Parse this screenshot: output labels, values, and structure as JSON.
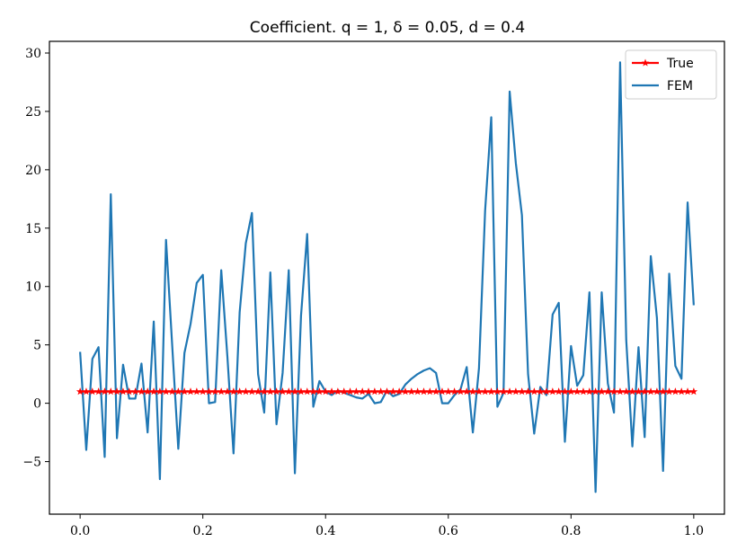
{
  "chart_data": {
    "type": "line",
    "title": "Coefficient. q = 1, δ = 0.05, d = 0.4",
    "xlim": [
      -0.05,
      1.05
    ],
    "ylim": [
      -9.5,
      31
    ],
    "x_ticks": [
      "0.0",
      "0.2",
      "0.4",
      "0.6",
      "0.8",
      "1.0"
    ],
    "y_ticks": [
      "−5",
      "0",
      "5",
      "10",
      "15",
      "20",
      "25",
      "30"
    ],
    "grid": false,
    "legend_position": "upper right",
    "colors": {
      "true": "#ff0000",
      "fem": "#1f77b4"
    },
    "series": [
      {
        "name": "True",
        "marker": "star",
        "x": [
          0,
          0.01,
          0.02,
          0.03,
          0.04,
          0.05,
          0.06,
          0.07,
          0.08,
          0.09,
          0.1,
          0.11,
          0.12,
          0.13,
          0.14,
          0.15,
          0.16,
          0.17,
          0.18,
          0.19,
          0.2,
          0.21,
          0.22,
          0.23,
          0.24,
          0.25,
          0.26,
          0.27,
          0.28,
          0.29,
          0.3,
          0.31,
          0.32,
          0.33,
          0.34,
          0.35,
          0.36,
          0.37,
          0.38,
          0.39,
          0.4,
          0.41,
          0.42,
          0.43,
          0.44,
          0.45,
          0.46,
          0.47,
          0.48,
          0.49,
          0.5,
          0.51,
          0.52,
          0.53,
          0.54,
          0.55,
          0.56,
          0.57,
          0.58,
          0.59,
          0.6,
          0.61,
          0.62,
          0.63,
          0.64,
          0.65,
          0.66,
          0.67,
          0.68,
          0.69,
          0.7,
          0.71,
          0.72,
          0.73,
          0.74,
          0.75,
          0.76,
          0.77,
          0.78,
          0.79,
          0.8,
          0.81,
          0.82,
          0.83,
          0.84,
          0.85,
          0.86,
          0.87,
          0.88,
          0.89,
          0.9,
          0.91,
          0.92,
          0.93,
          0.94,
          0.95,
          0.96,
          0.97,
          0.98,
          0.99,
          1
        ],
        "y": [
          1,
          1,
          1,
          1,
          1,
          1,
          1,
          1,
          1,
          1,
          1,
          1,
          1,
          1,
          1,
          1,
          1,
          1,
          1,
          1,
          1,
          1,
          1,
          1,
          1,
          1,
          1,
          1,
          1,
          1,
          1,
          1,
          1,
          1,
          1,
          1,
          1,
          1,
          1,
          1,
          1,
          1,
          1,
          1,
          1,
          1,
          1,
          1,
          1,
          1,
          1,
          1,
          1,
          1,
          1,
          1,
          1,
          1,
          1,
          1,
          1,
          1,
          1,
          1,
          1,
          1,
          1,
          1,
          1,
          1,
          1,
          1,
          1,
          1,
          1,
          1,
          1,
          1,
          1,
          1,
          1,
          1,
          1,
          1,
          1,
          1,
          1,
          1,
          1,
          1,
          1,
          1,
          1,
          1,
          1,
          1,
          1,
          1,
          1,
          1,
          1
        ]
      },
      {
        "name": "FEM",
        "x": [
          0,
          0.01,
          0.02,
          0.03,
          0.04,
          0.05,
          0.06,
          0.07,
          0.08,
          0.09,
          0.1,
          0.11,
          0.12,
          0.13,
          0.14,
          0.15,
          0.16,
          0.17,
          0.18,
          0.19,
          0.2,
          0.21,
          0.22,
          0.23,
          0.24,
          0.25,
          0.26,
          0.27,
          0.28,
          0.29,
          0.3,
          0.31,
          0.32,
          0.33,
          0.34,
          0.35,
          0.36,
          0.37,
          0.38,
          0.39,
          0.4,
          0.41,
          0.42,
          0.43,
          0.44,
          0.45,
          0.46,
          0.47,
          0.48,
          0.49,
          0.5,
          0.51,
          0.52,
          0.53,
          0.54,
          0.55,
          0.56,
          0.57,
          0.58,
          0.59,
          0.6,
          0.61,
          0.62,
          0.63,
          0.64,
          0.65,
          0.66,
          0.67,
          0.68,
          0.69,
          0.7,
          0.71,
          0.72,
          0.73,
          0.74,
          0.75,
          0.76,
          0.77,
          0.78,
          0.79,
          0.8,
          0.81,
          0.82,
          0.83,
          0.84,
          0.85,
          0.86,
          0.87,
          0.88,
          0.89,
          0.9,
          0.91,
          0.92,
          0.93,
          0.94,
          0.95,
          0.96,
          0.97,
          0.98,
          0.99,
          1
        ],
        "y": [
          4.4,
          -4.0,
          3.8,
          4.8,
          -4.6,
          17.9,
          -3.0,
          3.3,
          0.4,
          0.4,
          3.4,
          -2.5,
          7.0,
          -6.5,
          14.0,
          5.0,
          -3.9,
          4.3,
          6.8,
          10.3,
          11.0,
          0.0,
          0.1,
          11.4,
          4.0,
          -4.3,
          7.8,
          13.7,
          16.3,
          2.5,
          -0.8,
          11.2,
          -1.8,
          2.6,
          11.4,
          -6.0,
          7.5,
          14.5,
          -0.3,
          1.9,
          1.0,
          0.7,
          1.1,
          0.9,
          0.7,
          0.5,
          0.4,
          0.8,
          0.0,
          0.1,
          1.1,
          0.6,
          0.8,
          1.6,
          2.1,
          2.5,
          2.8,
          3.0,
          2.6,
          0.0,
          0.0,
          0.7,
          1.2,
          3.1,
          -2.5,
          3.0,
          16.5,
          24.5,
          -0.3,
          0.9,
          26.7,
          20.6,
          16.1,
          2.5,
          -2.6,
          1.4,
          0.7,
          7.6,
          8.6,
          -3.3,
          4.9,
          1.5,
          2.4,
          9.5,
          -7.6,
          9.5,
          1.7,
          -0.8,
          29.2,
          5.4,
          -3.7,
          4.8,
          -2.9,
          12.6,
          7.3,
          -5.8,
          11.1,
          3.2,
          2.1,
          17.2,
          8.4
        ]
      }
    ]
  }
}
